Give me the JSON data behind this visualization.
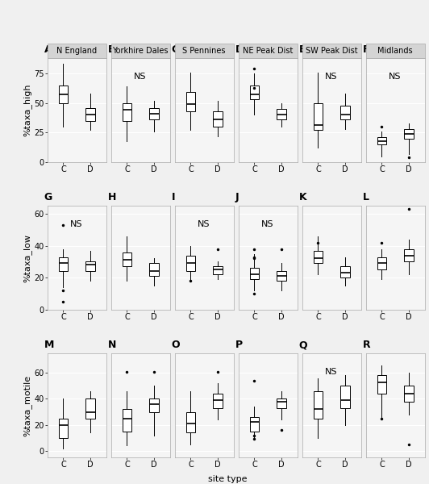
{
  "row1": {
    "ylabel": "%taxa_high",
    "ylim": [
      0,
      88
    ],
    "yticks": [
      0,
      25,
      50,
      75
    ],
    "panels": [
      {
        "label": "A",
        "title": "N England",
        "ns": false,
        "C": {
          "q1": 50,
          "median": 57,
          "q3": 65,
          "whislo": 30,
          "whishi": 83,
          "fliers": []
        },
        "D": {
          "q1": 35,
          "median": 40,
          "q3": 46,
          "whislo": 27,
          "whishi": 58,
          "fliers": []
        }
      },
      {
        "label": "B",
        "title": "Yorkhire Dales",
        "ns": true,
        "C": {
          "q1": 35,
          "median": 44,
          "q3": 50,
          "whislo": 18,
          "whishi": 64,
          "fliers": []
        },
        "D": {
          "q1": 36,
          "median": 41,
          "q3": 46,
          "whislo": 26,
          "whishi": 52,
          "fliers": []
        }
      },
      {
        "label": "C",
        "title": "S Pennines",
        "ns": false,
        "C": {
          "q1": 43,
          "median": 49,
          "q3": 59,
          "whislo": 27,
          "whishi": 76,
          "fliers": []
        },
        "D": {
          "q1": 30,
          "median": 36,
          "q3": 43,
          "whislo": 22,
          "whishi": 52,
          "fliers": []
        }
      },
      {
        "label": "D",
        "title": "NE Peak Dist",
        "ns": false,
        "C": {
          "q1": 53,
          "median": 57,
          "q3": 65,
          "whislo": 40,
          "whishi": 75,
          "fliers": [
            79,
            63
          ]
        },
        "D": {
          "q1": 36,
          "median": 40,
          "q3": 45,
          "whislo": 30,
          "whishi": 50,
          "fliers": []
        }
      },
      {
        "label": "E",
        "title": "SW Peak Dist",
        "ns": true,
        "C": {
          "q1": 27,
          "median": 31,
          "q3": 50,
          "whislo": 12,
          "whishi": 76,
          "fliers": []
        },
        "D": {
          "q1": 36,
          "median": 40,
          "q3": 48,
          "whislo": 28,
          "whishi": 58,
          "fliers": []
        }
      },
      {
        "label": "F",
        "title": "Midlands",
        "ns": true,
        "C": {
          "q1": 15,
          "median": 18,
          "q3": 21,
          "whislo": 5,
          "whishi": 26,
          "fliers": [
            30
          ]
        },
        "D": {
          "q1": 20,
          "median": 24,
          "q3": 28,
          "whislo": 7,
          "whishi": 33,
          "fliers": [
            4
          ]
        }
      }
    ]
  },
  "row2": {
    "ylabel": "%taxa_low",
    "ylim": [
      0,
      65
    ],
    "yticks": [
      0,
      20,
      40,
      60
    ],
    "panels": [
      {
        "label": "G",
        "title": "",
        "ns": true,
        "C": {
          "q1": 24,
          "median": 29,
          "q3": 33,
          "whislo": 14,
          "whishi": 38,
          "fliers": [
            53,
            12,
            5
          ]
        },
        "D": {
          "q1": 24,
          "median": 28,
          "q3": 30,
          "whislo": 18,
          "whishi": 37,
          "fliers": []
        }
      },
      {
        "label": "H",
        "title": "",
        "ns": false,
        "C": {
          "q1": 27,
          "median": 31,
          "q3": 36,
          "whislo": 18,
          "whishi": 46,
          "fliers": []
        },
        "D": {
          "q1": 21,
          "median": 24,
          "q3": 29,
          "whislo": 15,
          "whishi": 32,
          "fliers": []
        }
      },
      {
        "label": "I",
        "title": "",
        "ns": true,
        "C": {
          "q1": 24,
          "median": 29,
          "q3": 34,
          "whislo": 18,
          "whishi": 40,
          "fliers": [
            18
          ]
        },
        "D": {
          "q1": 22,
          "median": 25,
          "q3": 27,
          "whislo": 19,
          "whishi": 30,
          "fliers": [
            38
          ]
        }
      },
      {
        "label": "J",
        "title": "",
        "ns": true,
        "C": {
          "q1": 19,
          "median": 22,
          "q3": 26,
          "whislo": 12,
          "whishi": 35,
          "fliers": [
            38,
            33,
            32,
            10
          ]
        },
        "D": {
          "q1": 18,
          "median": 21,
          "q3": 24,
          "whislo": 12,
          "whishi": 29,
          "fliers": [
            38
          ]
        }
      },
      {
        "label": "K",
        "title": "",
        "ns": false,
        "C": {
          "q1": 29,
          "median": 32,
          "q3": 37,
          "whislo": 22,
          "whishi": 46,
          "fliers": [
            42
          ]
        },
        "D": {
          "q1": 20,
          "median": 23,
          "q3": 27,
          "whislo": 15,
          "whishi": 33,
          "fliers": []
        }
      },
      {
        "label": "L",
        "title": "",
        "ns": false,
        "C": {
          "q1": 25,
          "median": 29,
          "q3": 33,
          "whislo": 19,
          "whishi": 38,
          "fliers": [
            42
          ]
        },
        "D": {
          "q1": 30,
          "median": 34,
          "q3": 38,
          "whislo": 22,
          "whishi": 44,
          "fliers": [
            63
          ]
        }
      }
    ]
  },
  "row3": {
    "ylabel": "%taxa_motile",
    "ylim": [
      -5,
      75
    ],
    "yticks": [
      0,
      20,
      40,
      60
    ],
    "panels": [
      {
        "label": "M",
        "title": "",
        "ns": false,
        "C": {
          "q1": 10,
          "median": 20,
          "q3": 25,
          "whislo": 2,
          "whishi": 40,
          "fliers": []
        },
        "D": {
          "q1": 25,
          "median": 30,
          "q3": 40,
          "whislo": 14,
          "whishi": 46,
          "fliers": []
        }
      },
      {
        "label": "N",
        "title": "",
        "ns": false,
        "C": {
          "q1": 15,
          "median": 25,
          "q3": 32,
          "whislo": 4,
          "whishi": 46,
          "fliers": [
            61
          ]
        },
        "D": {
          "q1": 30,
          "median": 36,
          "q3": 40,
          "whislo": 12,
          "whishi": 50,
          "fliers": [
            61
          ]
        }
      },
      {
        "label": "O",
        "title": "",
        "ns": false,
        "C": {
          "q1": 14,
          "median": 21,
          "q3": 30,
          "whislo": 5,
          "whishi": 46,
          "fliers": []
        },
        "D": {
          "q1": 33,
          "median": 39,
          "q3": 44,
          "whislo": 24,
          "whishi": 52,
          "fliers": [
            61
          ]
        }
      },
      {
        "label": "P",
        "title": "",
        "ns": false,
        "C": {
          "q1": 15,
          "median": 22,
          "q3": 26,
          "whislo": 10,
          "whishi": 34,
          "fliers": [
            54,
            12,
            9
          ]
        },
        "D": {
          "q1": 33,
          "median": 38,
          "q3": 40,
          "whislo": 24,
          "whishi": 46,
          "fliers": [
            16
          ]
        }
      },
      {
        "label": "Q",
        "title": "",
        "ns": true,
        "C": {
          "q1": 25,
          "median": 32,
          "q3": 46,
          "whislo": 10,
          "whishi": 56,
          "fliers": []
        },
        "D": {
          "q1": 33,
          "median": 39,
          "q3": 50,
          "whislo": 20,
          "whishi": 58,
          "fliers": []
        }
      },
      {
        "label": "R",
        "title": "",
        "ns": false,
        "C": {
          "q1": 44,
          "median": 53,
          "q3": 58,
          "whislo": 24,
          "whishi": 66,
          "fliers": [
            25
          ]
        },
        "D": {
          "q1": 38,
          "median": 44,
          "q3": 50,
          "whislo": 28,
          "whishi": 60,
          "fliers": [
            5
          ]
        }
      }
    ]
  },
  "bg_color": "#f0f0f0",
  "plot_bg": "#f5f5f5",
  "strip_color": "#d4d4d4",
  "box_color": "white",
  "panel_label_fontsize": 9,
  "axis_label_fontsize": 8,
  "tick_fontsize": 7,
  "title_fontsize": 7,
  "ns_fontsize": 8,
  "xlabel": "site type"
}
